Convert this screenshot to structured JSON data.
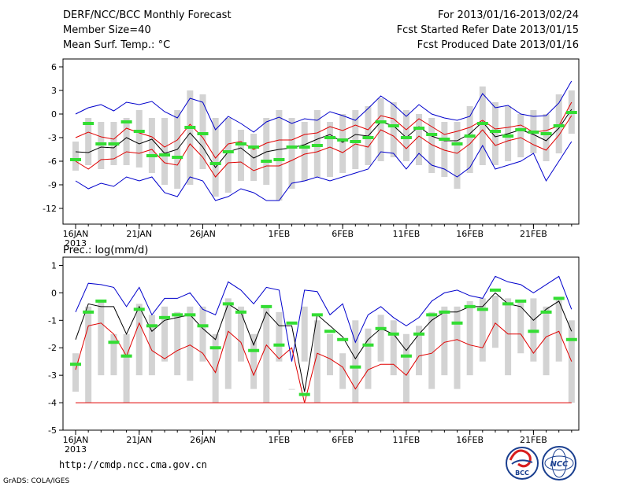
{
  "header": {
    "title": "DERF/NCC/BCC Monthly Forecast",
    "member_size": "Member Size=40",
    "variable1": "Mean Surf. Temp.: °C",
    "period": "For 2013/01/16-2013/02/24",
    "start_date": "Fcst Started Refer Date 2013/01/15",
    "produced_date": "Fcst Produced Date 2013/01/16"
  },
  "footer": {
    "url": "http://cmdp.ncc.cma.gov.cn",
    "grads": "GrADS: COLA/IGES",
    "logo_bcc": "BCC",
    "logo_ncc": "NCC"
  },
  "colors": {
    "box": "#d3d3d3",
    "mean": "#000000",
    "spread": "#e00000",
    "extreme": "#0000cc",
    "median": "#33dd33",
    "floor": "#e00000"
  },
  "x_labels": [
    {
      "day": 1,
      "label": "16JAN",
      "sub": "2013"
    },
    {
      "day": 6,
      "label": "21JAN"
    },
    {
      "day": 11,
      "label": "26JAN"
    },
    {
      "day": 17,
      "label": "1FEB"
    },
    {
      "day": 22,
      "label": "6FEB"
    },
    {
      "day": 27,
      "label": "11FEB"
    },
    {
      "day": 32,
      "label": "16FEB"
    },
    {
      "day": 37,
      "label": "21FEB"
    }
  ],
  "chart_data": [
    {
      "type": "box",
      "title": "Mean Surf. Temp.: °C",
      "ylim": [
        -14,
        7
      ],
      "yticks": [
        6,
        3,
        0,
        -3,
        -6,
        -9,
        -12
      ],
      "days": [
        1,
        2,
        3,
        4,
        5,
        6,
        7,
        8,
        9,
        10,
        11,
        12,
        13,
        14,
        15,
        16,
        17,
        18,
        19,
        20,
        21,
        22,
        23,
        24,
        25,
        26,
        27,
        28,
        29,
        30,
        31,
        32,
        33,
        34,
        35,
        36,
        37,
        38,
        39,
        40
      ],
      "box_low": [
        -7.2,
        -6.5,
        -7.0,
        -6.5,
        -6.5,
        -6.8,
        -7.5,
        -9.0,
        -9.5,
        -9.0,
        -7.0,
        -10.5,
        -10.0,
        -8.5,
        -8.5,
        -9.0,
        -11.0,
        -9.5,
        -8.5,
        -8.0,
        -8.0,
        -7.5,
        -7.0,
        -6.5,
        -6.0,
        -5.5,
        -6.0,
        -6.5,
        -7.5,
        -8.0,
        -9.5,
        -7.5,
        -6.5,
        -6.5,
        -6.0,
        -5.5,
        -5.0,
        -6.0,
        -5.0,
        -2.5
      ],
      "box_high": [
        -3.5,
        -0.5,
        -1.0,
        -1.0,
        -0.5,
        0.5,
        -0.5,
        -0.5,
        0.5,
        3.0,
        2.5,
        -0.5,
        -0.5,
        -2.0,
        -2.5,
        -0.5,
        0.5,
        -0.5,
        -1.0,
        0.5,
        -1.0,
        0.0,
        0.5,
        1.0,
        2.0,
        1.5,
        0.5,
        0.0,
        -0.5,
        -1.0,
        -1.0,
        1.0,
        3.5,
        1.5,
        1.0,
        0.0,
        0.5,
        0.0,
        2.5,
        3.0
      ],
      "median": [
        -5.8,
        -1.2,
        -3.8,
        -3.8,
        -1.0,
        -2.2,
        -5.3,
        -5.2,
        -5.5,
        -1.7,
        -2.5,
        -6.3,
        -4.8,
        -3.8,
        -4.2,
        -6.0,
        -5.8,
        -4.2,
        -4.2,
        -4.0,
        -3.0,
        -3.3,
        -3.5,
        -3.0,
        -1.0,
        -1.5,
        -3.0,
        -1.8,
        -2.6,
        -3.2,
        -3.8,
        -2.8,
        -1.2,
        -2.2,
        -2.8,
        -2.0,
        -2.3,
        -2.5,
        -1.5,
        0.2
      ],
      "series": [
        {
          "name": "max",
          "values": [
            0.0,
            0.8,
            1.2,
            0.4,
            1.5,
            1.2,
            1.6,
            0.3,
            -0.5,
            2.0,
            1.5,
            -2.0,
            -0.3,
            -1.2,
            -2.3,
            -1.0,
            -0.4,
            -1.2,
            -0.6,
            -0.8,
            0.3,
            -0.2,
            -0.8,
            0.7,
            2.3,
            1.2,
            -0.3,
            1.2,
            0.0,
            -0.5,
            -0.8,
            -0.3,
            2.6,
            0.8,
            1.1,
            0.0,
            -0.3,
            -0.2,
            1.4,
            4.2
          ]
        },
        {
          "name": "mean_plus",
          "values": [
            -3.0,
            -2.3,
            -2.9,
            -3.2,
            -1.8,
            -2.4,
            -2.9,
            -4.2,
            -3.3,
            -1.3,
            -3.0,
            -5.6,
            -3.8,
            -3.5,
            -4.5,
            -3.7,
            -3.3,
            -3.3,
            -2.6,
            -2.4,
            -1.6,
            -2.1,
            -1.4,
            -2.0,
            -0.2,
            -0.6,
            -2.0,
            -0.6,
            -1.6,
            -2.6,
            -2.2,
            -1.7,
            -0.8,
            -1.9,
            -1.7,
            -1.4,
            -2.3,
            -2.1,
            -1.5,
            1.5
          ]
        },
        {
          "name": "mean",
          "values": [
            -4.8,
            -4.9,
            -4.2,
            -4.3,
            -3.0,
            -3.8,
            -3.2,
            -5.0,
            -4.5,
            -2.4,
            -4.2,
            -6.8,
            -4.8,
            -4.3,
            -5.6,
            -4.8,
            -4.5,
            -4.3,
            -3.9,
            -3.2,
            -2.6,
            -3.6,
            -2.6,
            -2.8,
            -1.0,
            -1.5,
            -3.0,
            -1.6,
            -2.8,
            -3.4,
            -3.4,
            -2.5,
            -1.0,
            -2.9,
            -2.5,
            -2.0,
            -2.6,
            -3.4,
            -1.8,
            0.6
          ]
        },
        {
          "name": "mean_minus",
          "values": [
            -6.0,
            -7.0,
            -5.8,
            -5.7,
            -4.8,
            -5.0,
            -4.5,
            -6.2,
            -6.5,
            -3.8,
            -5.5,
            -8.0,
            -6.2,
            -6.1,
            -7.2,
            -6.6,
            -6.6,
            -5.9,
            -5.1,
            -4.8,
            -4.2,
            -4.9,
            -3.8,
            -4.2,
            -2.0,
            -2.8,
            -4.4,
            -2.8,
            -3.9,
            -4.6,
            -5.0,
            -3.8,
            -2.0,
            -4.0,
            -3.4,
            -3.0,
            -3.9,
            -4.6,
            -2.7,
            -0.2
          ]
        },
        {
          "name": "min",
          "values": [
            -8.5,
            -9.5,
            -8.8,
            -9.2,
            -8.0,
            -8.5,
            -8.0,
            -10.0,
            -10.5,
            -8.0,
            -8.5,
            -11.0,
            -10.5,
            -9.5,
            -10.0,
            -11.0,
            -11.0,
            -8.8,
            -8.5,
            -8.0,
            -8.5,
            -8.0,
            -7.5,
            -7.0,
            -4.8,
            -5.0,
            -7.0,
            -5.0,
            -6.5,
            -7.0,
            -8.0,
            -6.8,
            -4.0,
            -7.0,
            -6.5,
            -6.0,
            -5.0,
            -8.5,
            -6.0,
            -3.5
          ]
        }
      ]
    },
    {
      "type": "box",
      "title": "Prec.: log(mm/d)",
      "ylim": [
        -5,
        1.3
      ],
      "yticks": [
        1,
        0,
        -1,
        -2,
        -3,
        -4,
        -5
      ],
      "days": [
        1,
        2,
        3,
        4,
        5,
        6,
        7,
        8,
        9,
        10,
        11,
        12,
        13,
        14,
        15,
        16,
        17,
        18,
        19,
        20,
        21,
        22,
        23,
        24,
        25,
        26,
        27,
        28,
        29,
        30,
        31,
        32,
        33,
        34,
        35,
        36,
        37,
        38,
        39,
        40
      ],
      "box_low": [
        -3.6,
        -4.0,
        -3.0,
        -3.0,
        -4.0,
        -3.0,
        -3.0,
        -2.5,
        -3.0,
        -3.2,
        -2.5,
        -4.0,
        -3.5,
        -2.5,
        -3.5,
        -4.0,
        -2.5,
        -3.0,
        -2.5,
        -4.0,
        -3.0,
        -3.5,
        -4.0,
        -3.5,
        -2.5,
        -3.0,
        -4.0,
        -3.0,
        -3.5,
        -3.0,
        -3.5,
        -3.0,
        -2.5,
        -2.0,
        -3.0,
        -2.2,
        -2.5,
        -3.0,
        -2.5,
        -4.0
      ],
      "box_high": [
        -2.2,
        -0.5,
        -0.3,
        -1.5,
        -1.5,
        -0.4,
        -0.8,
        -0.5,
        -0.7,
        -0.5,
        -0.5,
        -1.5,
        -0.2,
        -0.5,
        -1.5,
        -0.5,
        -0.7,
        -3.5,
        -0.5,
        -1.0,
        -1.5,
        -2.2,
        -1.0,
        -1.3,
        -0.8,
        -1.0,
        -1.5,
        -1.2,
        -0.7,
        -0.5,
        -0.5,
        -0.3,
        -0.2,
        -0.1,
        -0.2,
        -0.3,
        -0.2,
        -0.5,
        -0.2,
        -1.0
      ],
      "median": [
        -2.6,
        -0.7,
        -0.3,
        -1.8,
        -2.3,
        -0.6,
        -1.2,
        -0.9,
        -0.8,
        -0.8,
        -1.2,
        -2.0,
        -0.4,
        -0.7,
        -2.1,
        -0.5,
        -1.9,
        -1.1,
        -3.7,
        -0.8,
        -1.4,
        -1.7,
        -2.7,
        -1.9,
        -1.3,
        -1.5,
        -2.3,
        -1.5,
        -0.8,
        -0.7,
        -1.1,
        -0.5,
        -0.6,
        0.1,
        -0.4,
        -0.3,
        -1.4,
        -0.7,
        -0.2,
        -1.7
      ],
      "series": [
        {
          "name": "max",
          "values": [
            -0.7,
            0.35,
            0.3,
            0.2,
            -0.5,
            0.2,
            -0.8,
            -0.2,
            -0.2,
            0.0,
            -0.6,
            -0.8,
            0.4,
            0.1,
            -0.4,
            0.2,
            0.1,
            -2.5,
            0.1,
            0.05,
            -0.8,
            -0.4,
            -1.8,
            -0.8,
            -0.5,
            -0.9,
            -1.2,
            -0.9,
            -0.3,
            0.0,
            0.1,
            -0.1,
            -0.2,
            0.6,
            0.4,
            0.3,
            0.0,
            0.3,
            0.6,
            -0.6
          ]
        },
        {
          "name": "mean",
          "values": [
            -1.7,
            -0.4,
            -0.5,
            -0.5,
            -1.5,
            -0.5,
            -1.4,
            -1.0,
            -0.9,
            -0.8,
            -1.3,
            -1.7,
            -0.4,
            -0.7,
            -1.9,
            -0.7,
            -1.2,
            -1.2,
            -3.6,
            -0.8,
            -1.2,
            -1.6,
            -2.4,
            -1.7,
            -1.3,
            -1.5,
            -2.1,
            -1.5,
            -1.0,
            -0.7,
            -0.7,
            -0.5,
            -0.5,
            0.0,
            -0.4,
            -0.5,
            -1.0,
            -0.6,
            -0.3,
            -1.4
          ]
        },
        {
          "name": "mean_minus",
          "values": [
            -2.8,
            -1.2,
            -1.1,
            -1.5,
            -2.3,
            -1.1,
            -2.1,
            -2.4,
            -2.1,
            -1.9,
            -2.2,
            -2.9,
            -1.4,
            -1.8,
            -3.0,
            -1.9,
            -2.4,
            -2.0,
            -4.0,
            -2.2,
            -2.4,
            -2.7,
            -3.5,
            -2.8,
            -2.6,
            -2.6,
            -3.0,
            -2.3,
            -2.2,
            -1.8,
            -1.7,
            -1.9,
            -2.0,
            -1.1,
            -1.5,
            -1.5,
            -2.2,
            -1.6,
            -1.4,
            -2.5
          ]
        }
      ],
      "floor": -4
    }
  ]
}
